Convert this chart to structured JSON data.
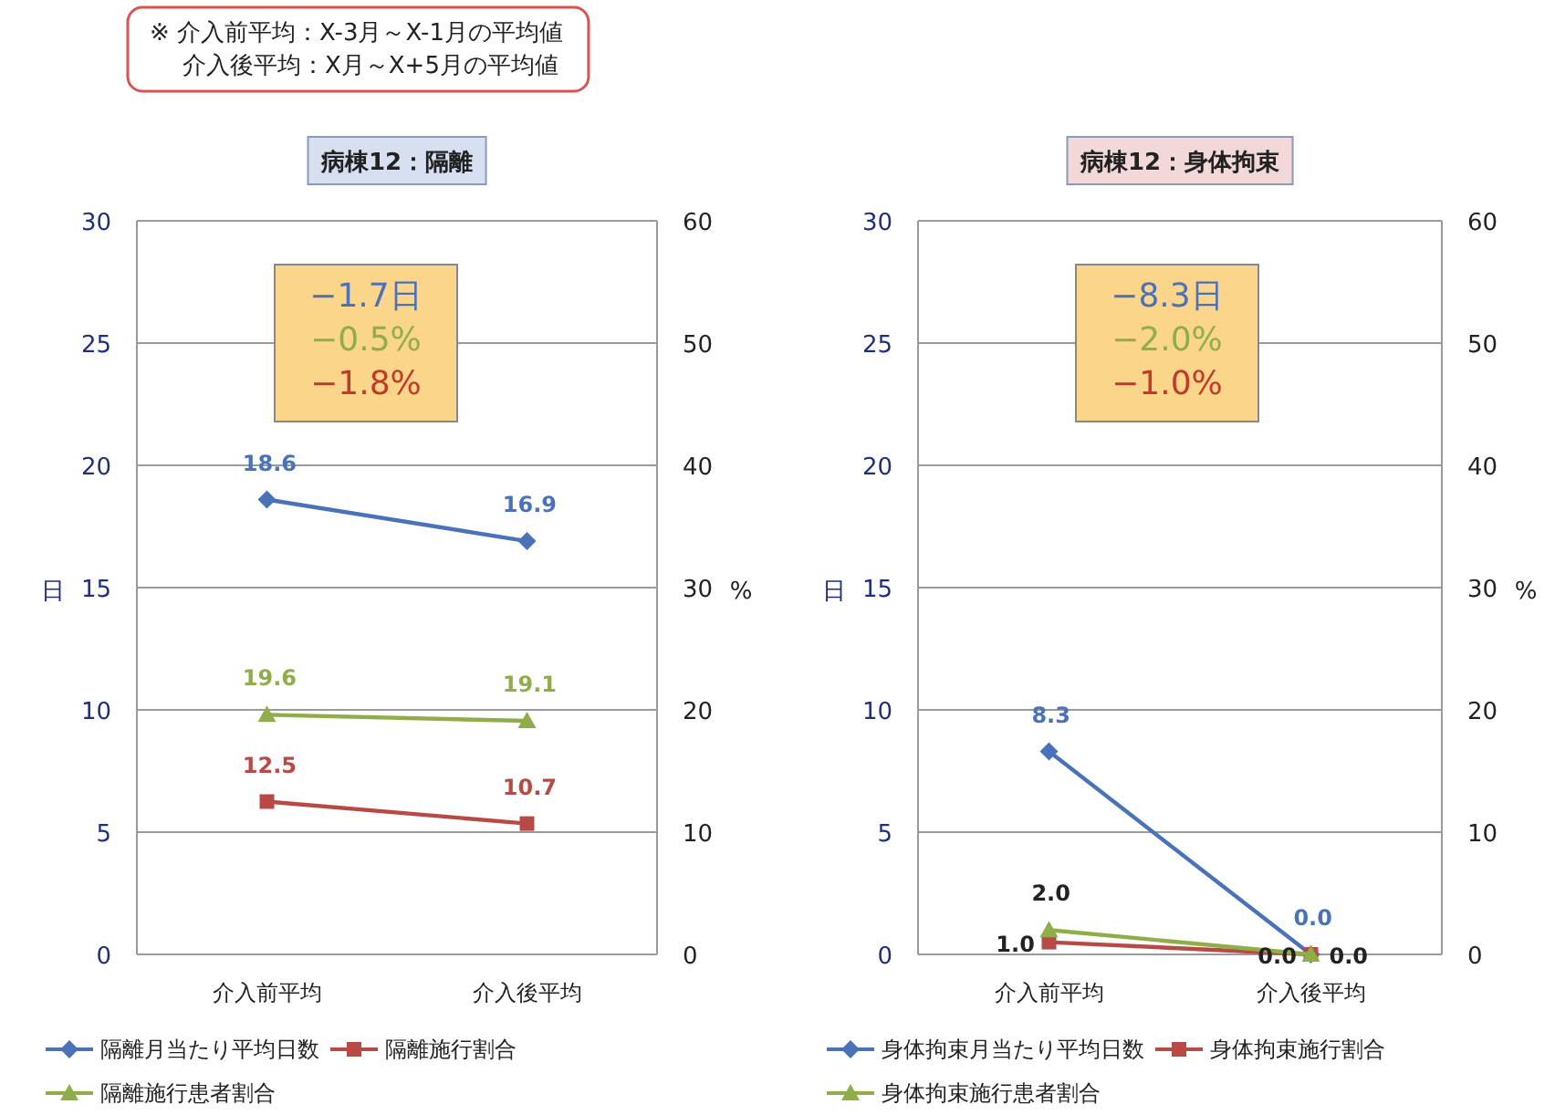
{
  "chart_data": [
    {
      "type": "line",
      "title": "病棟12：隔離",
      "categories": [
        "介入前平均",
        "介入後平均"
      ],
      "ylabel": "日",
      "y2label": "%",
      "ylim": [
        0,
        30
      ],
      "yticks": [
        0,
        5,
        10,
        15,
        20,
        25,
        30
      ],
      "y2lim": [
        0,
        60
      ],
      "y2ticks": [
        0,
        10,
        20,
        30,
        40,
        50,
        60
      ],
      "series": [
        {
          "name": "隔離月当たり平均日数",
          "color": "#4a72b8",
          "marker": "diamond",
          "values": [
            18.6,
            16.9
          ]
        },
        {
          "name": "隔離施行割合",
          "color": "#b84a46",
          "marker": "square",
          "axis": "y2",
          "values": [
            12.5,
            10.7
          ]
        },
        {
          "name": "隔離施行患者割合",
          "color": "#8fae4a",
          "marker": "triangle",
          "axis": "y2",
          "values": [
            19.6,
            19.1
          ]
        }
      ],
      "annotations": [
        "※ 介入前平均：X-3月～X-1月の平均値",
        "介入後平均：X月～X+5月の平均値",
        "−1.7日",
        "−0.5%",
        "−1.8%"
      ],
      "data_labels": true,
      "grid": "y",
      "legend": "bottom"
    },
    {
      "type": "line",
      "title": "病棟12：身体拘束",
      "categories": [
        "介入前平均",
        "介入後平均"
      ],
      "ylabel": "日",
      "y2label": "%",
      "ylim": [
        0,
        30
      ],
      "yticks": [
        0,
        5,
        10,
        15,
        20,
        25,
        30
      ],
      "y2lim": [
        0,
        60
      ],
      "y2ticks": [
        0,
        10,
        20,
        30,
        40,
        50,
        60
      ],
      "series": [
        {
          "name": "身体拘束月当たり平均日数",
          "color": "#4a72b8",
          "marker": "diamond",
          "values": [
            8.3,
            0.0
          ],
          "value_labels": [
            "8.3",
            "0.0"
          ]
        },
        {
          "name": "身体拘束施行割合",
          "color": "#b84a46",
          "marker": "square",
          "axis": "y2",
          "values": [
            1.0,
            0.0
          ],
          "value_labels": [
            "1.0",
            "0.0"
          ]
        },
        {
          "name": "身体拘束施行患者割合",
          "color": "#8fae4a",
          "marker": "triangle",
          "axis": "y2",
          "values": [
            2.0,
            0.0
          ],
          "value_labels": [
            "2.0",
            "0.0"
          ]
        }
      ],
      "annotations": [
        "−8.3日",
        "−2.0%",
        "−1.0%"
      ],
      "grid": "y",
      "legend": "bottom"
    }
  ]
}
